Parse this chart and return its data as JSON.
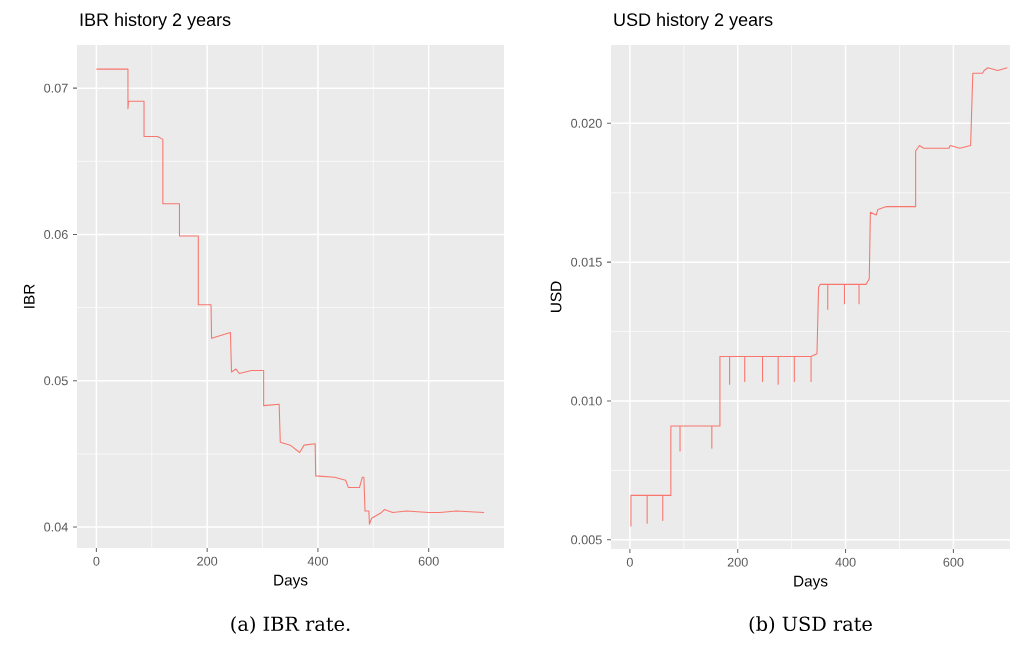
{
  "chart_data": [
    {
      "type": "line",
      "title": "IBR history 2 years",
      "xlabel": "Days",
      "ylabel": "IBR",
      "color": "#f8766d",
      "grid": true,
      "xlim": [
        -35,
        736
      ],
      "ylim": [
        0.03857,
        0.07295
      ],
      "xticks": [
        0,
        200,
        400,
        600
      ],
      "yticks": [
        0.04,
        0.05,
        0.06,
        0.07
      ],
      "x": [
        0,
        57,
        57,
        58,
        86,
        86,
        110,
        120,
        120,
        150,
        150,
        184,
        184,
        207,
        208,
        242,
        244,
        252,
        258,
        280,
        302,
        302,
        330,
        332,
        350,
        367,
        375,
        395,
        396,
        430,
        450,
        455,
        475,
        480,
        483,
        485,
        492,
        493,
        497,
        515,
        520,
        535,
        560,
        600,
        620,
        650,
        700
      ],
      "values": [
        0.0713,
        0.0713,
        0.0686,
        0.0691,
        0.0691,
        0.0667,
        0.0667,
        0.0665,
        0.0621,
        0.0621,
        0.0599,
        0.0599,
        0.0552,
        0.0552,
        0.0529,
        0.0533,
        0.0506,
        0.0508,
        0.0505,
        0.0507,
        0.0507,
        0.0483,
        0.0484,
        0.0458,
        0.0456,
        0.0451,
        0.0456,
        0.0457,
        0.0435,
        0.0434,
        0.0432,
        0.0427,
        0.0427,
        0.0434,
        0.0434,
        0.0411,
        0.0411,
        0.0402,
        0.0406,
        0.041,
        0.0412,
        0.041,
        0.0411,
        0.041,
        0.041,
        0.0411,
        0.041
      ],
      "annotations": [
        "(a) IBR rate."
      ]
    },
    {
      "type": "line",
      "title": "USD history 2 years",
      "xlabel": "Days",
      "ylabel": "USD",
      "color": "#f8766d",
      "grid": true,
      "xlim": [
        -35,
        705
      ],
      "ylim": [
        0.00467,
        0.02282
      ],
      "xticks": [
        0,
        200,
        400,
        600
      ],
      "yticks": [
        0.005,
        {
          "value": 0.01,
          "label": "0.010"
        },
        0.015,
        {
          "value": 0.02,
          "label": "0.020"
        }
      ],
      "x": [
        2,
        2,
        32,
        32,
        32,
        61,
        61,
        61,
        76,
        76,
        93,
        93,
        93,
        152,
        152,
        152,
        167,
        167,
        185,
        185,
        185,
        213,
        213,
        213,
        246,
        246,
        246,
        275,
        275,
        275,
        305,
        305,
        305,
        336,
        336,
        336,
        347,
        350,
        353,
        367,
        367,
        367,
        398,
        398,
        398,
        425,
        425,
        425,
        438,
        444,
        446,
        457,
        460,
        476,
        530,
        530,
        537,
        545,
        592,
        594,
        612,
        632,
        636,
        654,
        657,
        664,
        682,
        700
      ],
      "values": [
        0.00548,
        0.0066,
        0.0066,
        0.0056,
        0.0066,
        0.0066,
        0.0057,
        0.0066,
        0.0066,
        0.0091,
        0.0091,
        0.0082,
        0.0091,
        0.0091,
        0.0083,
        0.0091,
        0.0091,
        0.0116,
        0.0116,
        0.0106,
        0.0116,
        0.0116,
        0.0107,
        0.0116,
        0.0116,
        0.0107,
        0.0116,
        0.0116,
        0.0106,
        0.0116,
        0.0116,
        0.0107,
        0.0116,
        0.0116,
        0.0107,
        0.0116,
        0.0117,
        0.0141,
        0.0142,
        0.0142,
        0.0133,
        0.0142,
        0.0142,
        0.0135,
        0.0142,
        0.0142,
        0.0135,
        0.0142,
        0.0142,
        0.0144,
        0.0168,
        0.0167,
        0.0169,
        0.017,
        0.017,
        0.019,
        0.0192,
        0.0191,
        0.0191,
        0.0192,
        0.0191,
        0.0192,
        0.0218,
        0.0218,
        0.0219,
        0.022,
        0.0219,
        0.022
      ],
      "annotations": [
        "(b) USD rate"
      ]
    }
  ]
}
